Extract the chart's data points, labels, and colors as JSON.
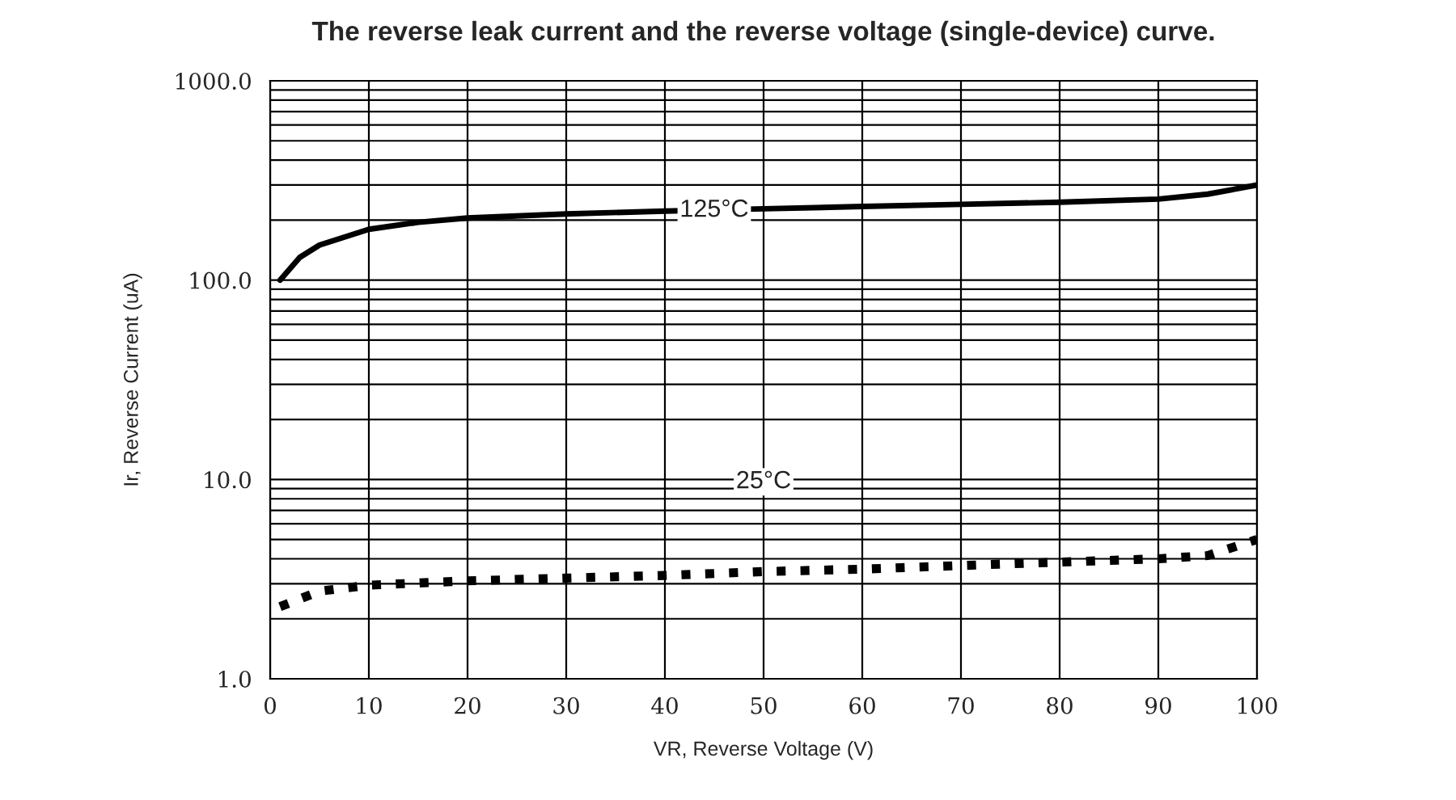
{
  "chart_data": {
    "type": "line",
    "title": "The reverse leak current and the reverse voltage (single-device) curve.",
    "xlabel": "VR, Reverse Voltage (V)",
    "ylabel": "Ir, Reverse Current (uA)",
    "series": [
      {
        "color": "#000000",
        "line_style": "solid",
        "x": [
          1,
          3,
          5,
          10,
          15,
          20,
          30,
          40,
          50,
          60,
          70,
          80,
          90,
          95,
          100
        ],
        "values": [
          100,
          130,
          150,
          180,
          195,
          205,
          215,
          222,
          228,
          234,
          240,
          246,
          255,
          270,
          300
        ]
      },
      {
        "color": "#000000",
        "line_style": "dotted",
        "x": [
          1,
          5,
          10,
          20,
          30,
          40,
          50,
          60,
          70,
          80,
          90,
          95,
          100
        ],
        "values": [
          2.3,
          2.75,
          2.95,
          3.1,
          3.2,
          3.3,
          3.45,
          3.55,
          3.7,
          3.85,
          4.0,
          4.15,
          5.0
        ]
      }
    ],
    "annotations": [
      {
        "text": "125°C",
        "x": 45,
        "y": 224
      },
      "25°C"
    ],
    "log": "y",
    "xlim": [
      0,
      100
    ],
    "ylim": [
      1,
      1000
    ],
    "xticks": [
      0,
      10,
      20,
      30,
      40,
      50,
      60,
      70,
      80,
      90,
      100
    ],
    "yticks": [
      {
        "value": 1,
        "label": "1.0"
      },
      {
        "value": 10,
        "label": "10.0"
      },
      {
        "value": 100,
        "label": "100.0"
      },
      {
        "value": 1000,
        "label": "1000.0"
      }
    ],
    "grid": true,
    "marker": "none"
  }
}
